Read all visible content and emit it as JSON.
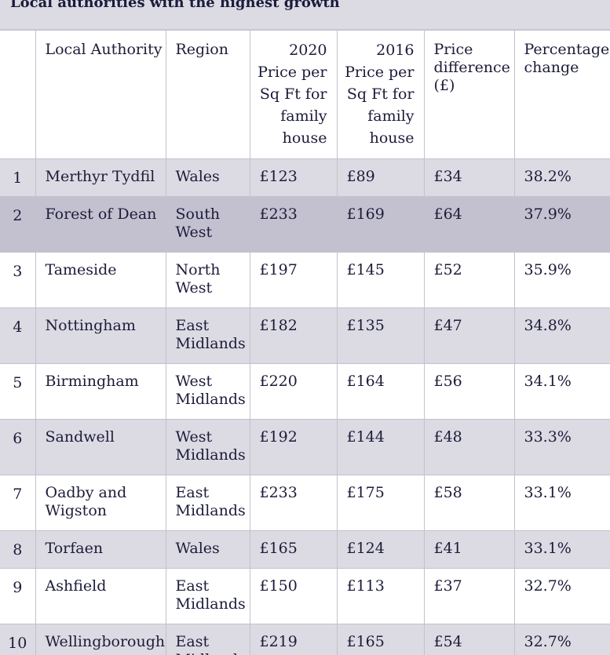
{
  "caption": "Local authorities with the highest growth",
  "table": {
    "headers": [
      "",
      "Local Authority",
      "Region",
      "2020 Price per Sq Ft for family house",
      "2016 Price per Sq Ft for family house",
      "Price difference (£)",
      "Percentage change"
    ],
    "header_lines": {
      "price2020": [
        "2020",
        "Price per",
        "Sq Ft for",
        "family",
        "house"
      ],
      "price2016": [
        "2016",
        "Price per",
        "Sq Ft for",
        "family",
        "house"
      ],
      "difference": [
        "Price",
        "difference",
        "(£)"
      ],
      "percentage": [
        "Percentage",
        "change"
      ]
    },
    "rows": [
      {
        "rank": "1",
        "authority": "Merthyr Tydfil",
        "region": "Wales",
        "price_2020": "£123",
        "price_2016": "£89",
        "difference": "£34",
        "change": "38.2%"
      },
      {
        "rank": "2",
        "authority": "Forest of Dean",
        "region": "South West",
        "price_2020": "£233",
        "price_2016": "£169",
        "difference": "£64",
        "change": "37.9%"
      },
      {
        "rank": "3",
        "authority": "Tameside",
        "region": "North West",
        "price_2020": "£197",
        "price_2016": "£145",
        "difference": "£52",
        "change": "35.9%"
      },
      {
        "rank": "4",
        "authority": "Nottingham",
        "region": "East Midlands",
        "price_2020": "£182",
        "price_2016": "£135",
        "difference": "£47",
        "change": "34.8%"
      },
      {
        "rank": "5",
        "authority": "Birmingham",
        "region": "West Midlands",
        "price_2020": "£220",
        "price_2016": "£164",
        "difference": "£56",
        "change": "34.1%"
      },
      {
        "rank": "6",
        "authority": "Sandwell",
        "region": "West Midlands",
        "price_2020": "£192",
        "price_2016": "£144",
        "difference": "£48",
        "change": "33.3%"
      },
      {
        "rank": "7",
        "authority": "Oadby and Wigston",
        "region": "East Midlands",
        "price_2020": "£233",
        "price_2016": "£175",
        "difference": "£58",
        "change": "33.1%"
      },
      {
        "rank": "8",
        "authority": "Torfaen",
        "region": "Wales",
        "price_2020": "£165",
        "price_2016": "£124",
        "difference": "£41",
        "change": "33.1%"
      },
      {
        "rank": "9",
        "authority": "Ashfield",
        "region": "East Midlands",
        "price_2020": "£150",
        "price_2016": "£113",
        "difference": "£37",
        "change": "32.7%"
      },
      {
        "rank": "10",
        "authority": "Wellingborough",
        "region": "East Midlands",
        "price_2020": "£219",
        "price_2016": "£165",
        "difference": "£54",
        "change": "32.7%"
      }
    ]
  },
  "colors": {
    "stripe": "#dcdbe3",
    "selected_row": "#c3c1cf",
    "text": "#1c1c3a",
    "border": "#c3c2cc"
  }
}
